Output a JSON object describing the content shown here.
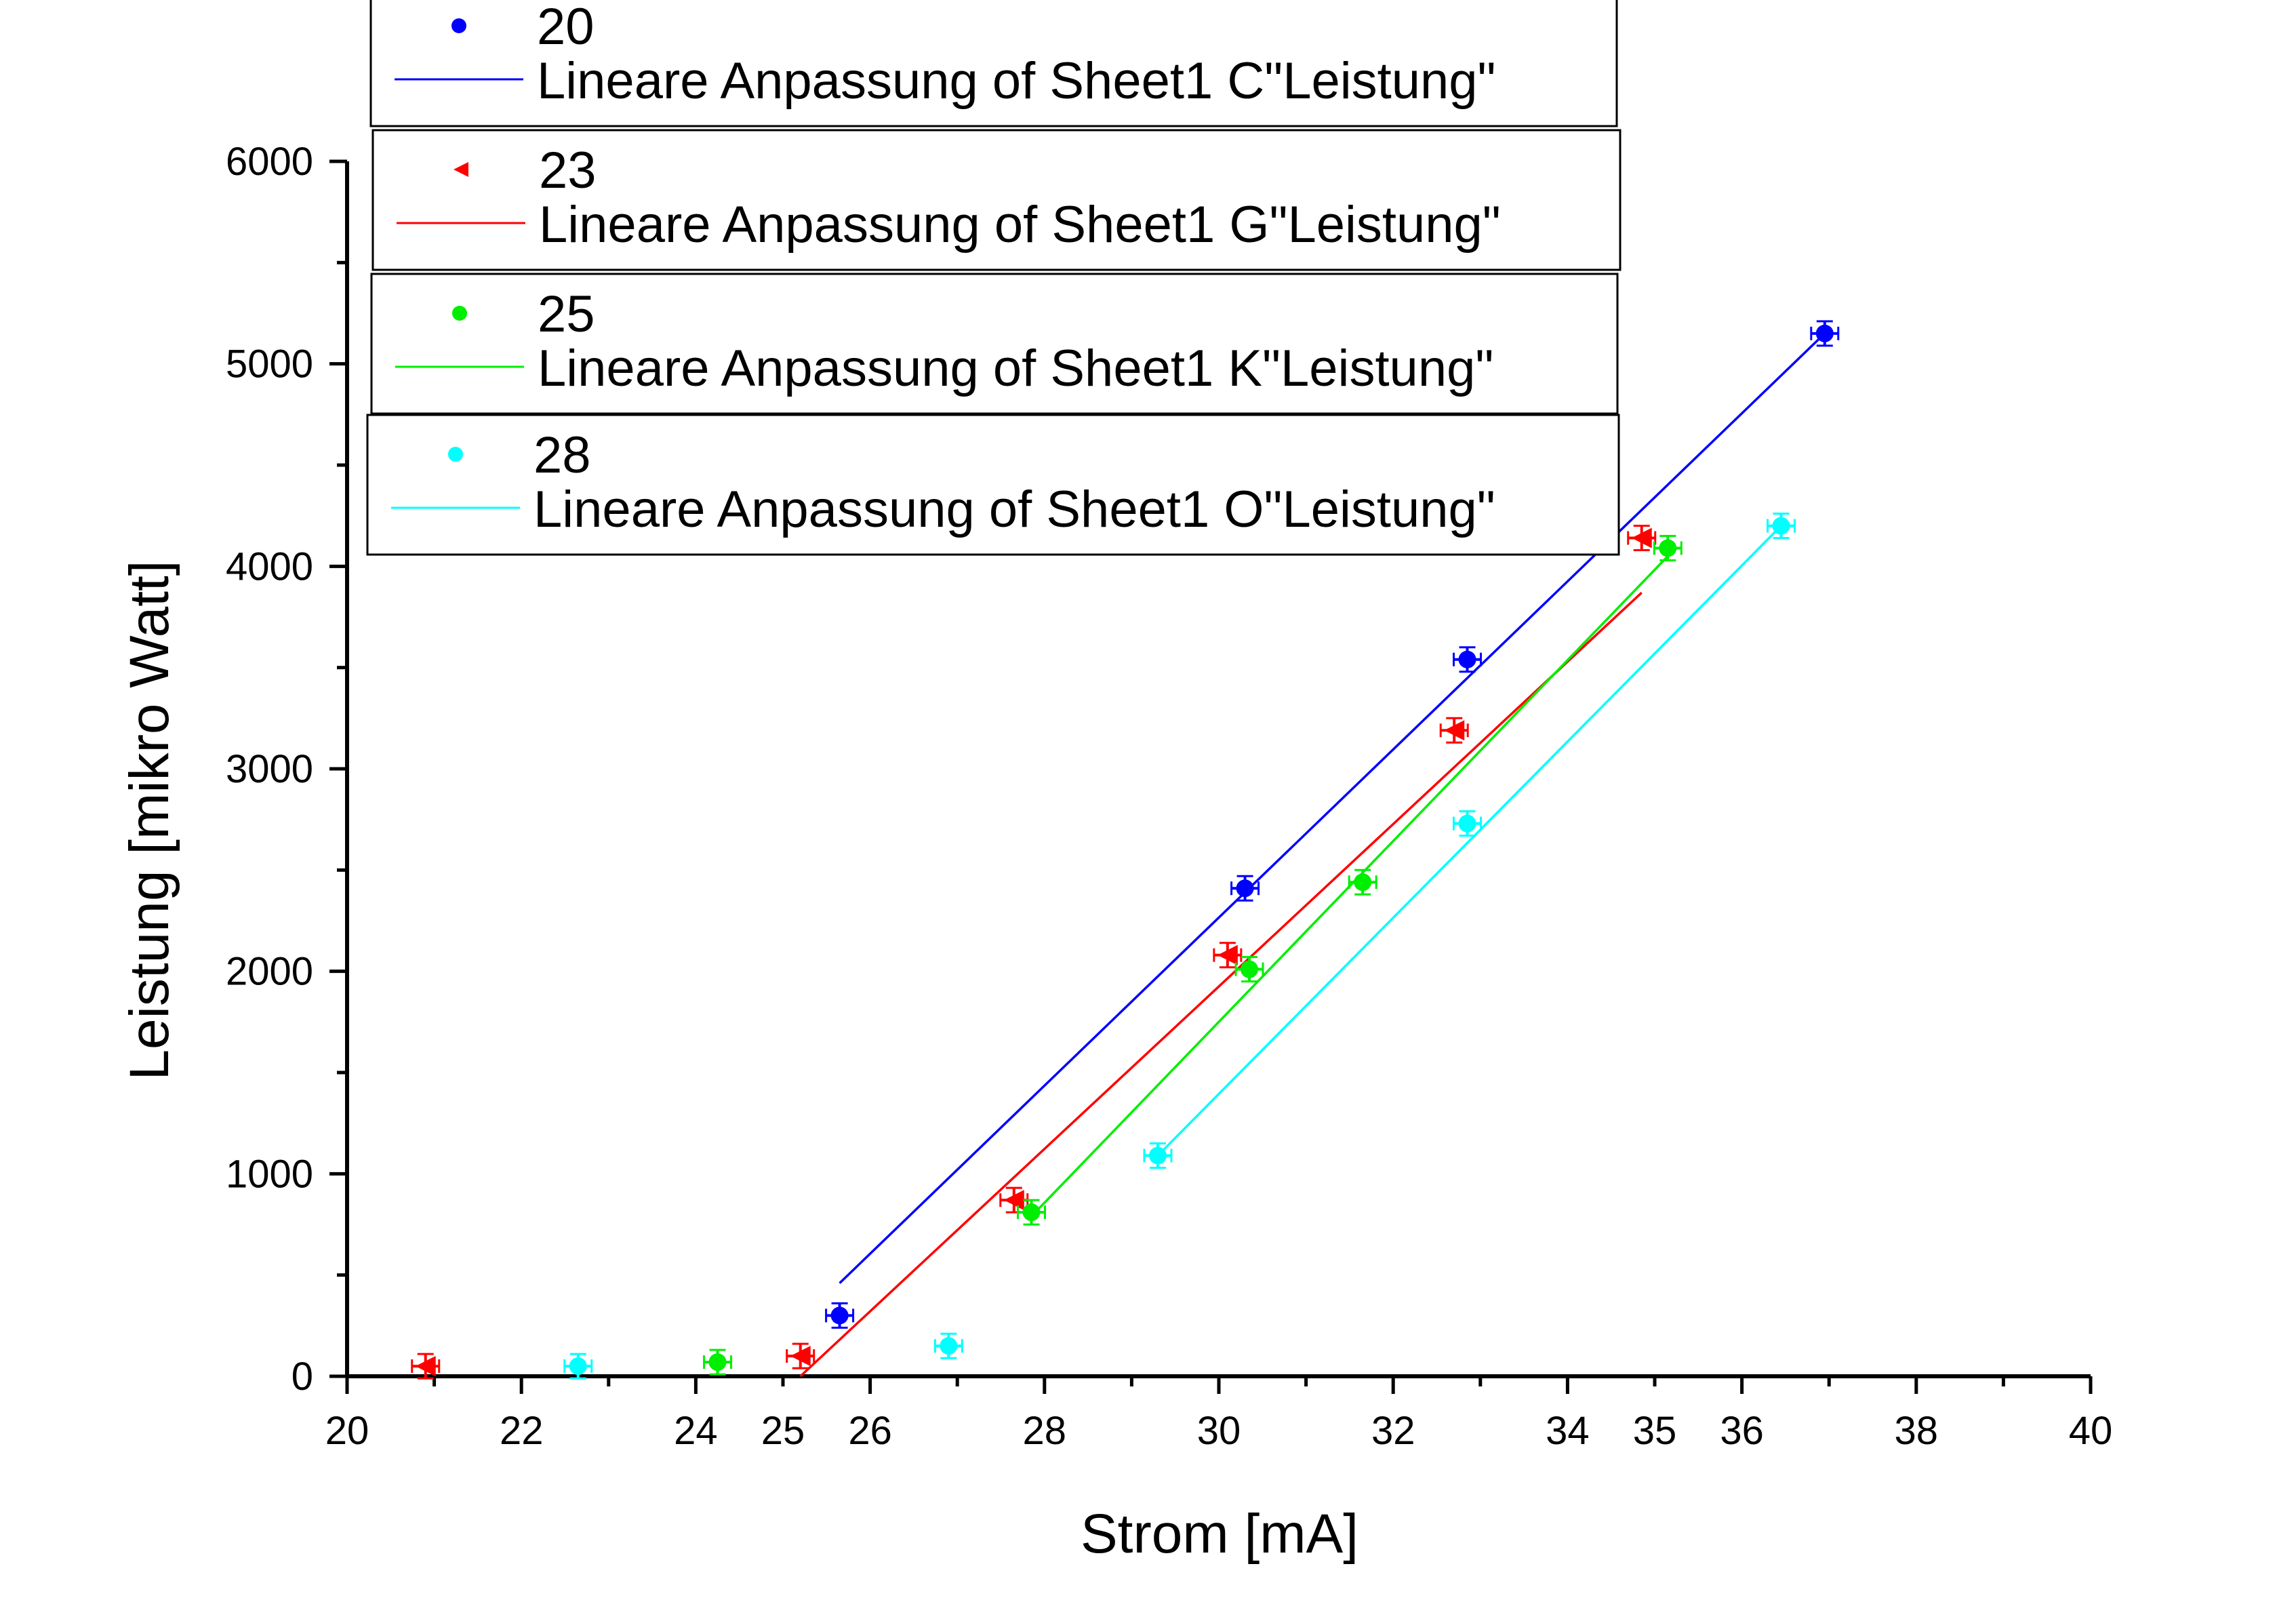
{
  "chart_data": {
    "type": "scatter",
    "xlabel": "Strom [mA]",
    "ylabel": "Leistung [mikro Watt]",
    "xlim": [
      20,
      40
    ],
    "ylim": [
      0,
      6000
    ],
    "x_ticks": [
      "20",
      "22",
      "24",
      "25",
      "26",
      "28",
      "30",
      "32",
      "34",
      "35",
      "36",
      "38",
      "40"
    ],
    "y_ticks": [
      "0",
      "1000",
      "2000",
      "3000",
      "4000",
      "5000",
      "6000"
    ],
    "grid": false,
    "legend_position": "top-left",
    "series": [
      {
        "name": "20",
        "color": "#0000ff",
        "marker": "circle",
        "points": [
          [
            25.65,
            300
          ],
          [
            30.3,
            2410
          ],
          [
            32.85,
            3540
          ],
          [
            36.95,
            5150
          ]
        ],
        "fit_name": "Lineare Anpassung of Sheet1 C\"Leistung\"",
        "fit": [
          [
            25.65,
            460
          ],
          [
            36.95,
            5150
          ]
        ]
      },
      {
        "name": "23",
        "color": "#ff0000",
        "marker": "triangle-left",
        "points": [
          [
            20.9,
            50
          ],
          [
            25.2,
            100
          ],
          [
            27.65,
            870
          ],
          [
            30.1,
            2080
          ],
          [
            32.7,
            3190
          ],
          [
            34.85,
            4140
          ]
        ],
        "fit_name": "Lineare Anpassung of Sheet1 G\"Leistung\"",
        "fit": [
          [
            25.2,
            0
          ],
          [
            34.85,
            3870
          ]
        ]
      },
      {
        "name": "25",
        "color": "#00ee00",
        "marker": "circle",
        "points": [
          [
            24.25,
            70
          ],
          [
            27.85,
            810
          ],
          [
            30.35,
            2010
          ],
          [
            31.65,
            2440
          ],
          [
            35.15,
            4090
          ]
        ],
        "fit_name": "Lineare Anpassung of Sheet1 K\"Leistung\"",
        "fit": [
          [
            27.85,
            790
          ],
          [
            35.15,
            4050
          ]
        ]
      },
      {
        "name": "28",
        "color": "#00ffff",
        "marker": "circle",
        "points": [
          [
            22.65,
            50
          ],
          [
            26.9,
            150
          ],
          [
            29.3,
            1090
          ],
          [
            32.85,
            2730
          ],
          [
            36.45,
            4200
          ]
        ],
        "fit_name": "Lineare Anpassung of Sheet1 O\"Leistung\"",
        "fit": [
          [
            29.3,
            1090
          ],
          [
            36.45,
            4200
          ]
        ]
      }
    ]
  }
}
